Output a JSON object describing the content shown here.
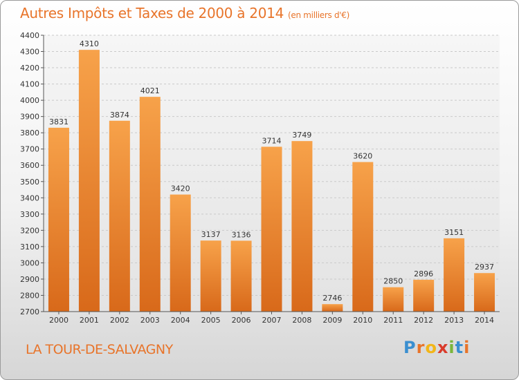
{
  "chart_data": {
    "type": "bar",
    "title": "Autres Impôts et Taxes de 2000 à 2014",
    "subtitle": "(en milliers d'€)",
    "categories": [
      "2000",
      "2001",
      "2002",
      "2003",
      "2004",
      "2005",
      "2006",
      "2007",
      "2008",
      "2009",
      "2010",
      "2011",
      "2012",
      "2013",
      "2014"
    ],
    "values": [
      3831,
      4310,
      3874,
      4021,
      3420,
      3137,
      3136,
      3714,
      3749,
      2746,
      3620,
      2850,
      2896,
      3151,
      2937
    ],
    "ylim": [
      2700,
      4400
    ],
    "yticks": [
      2700,
      2800,
      2900,
      3000,
      3100,
      3200,
      3300,
      3400,
      3500,
      3600,
      3700,
      3800,
      3900,
      4000,
      4100,
      4200,
      4300,
      4400
    ],
    "grid": true,
    "bar_color": "#f0922e"
  },
  "footer": {
    "location": "LA TOUR-DE-SALVAGNY",
    "logo": [
      "P",
      "r",
      "o",
      "x",
      "i",
      "t",
      "i"
    ]
  }
}
